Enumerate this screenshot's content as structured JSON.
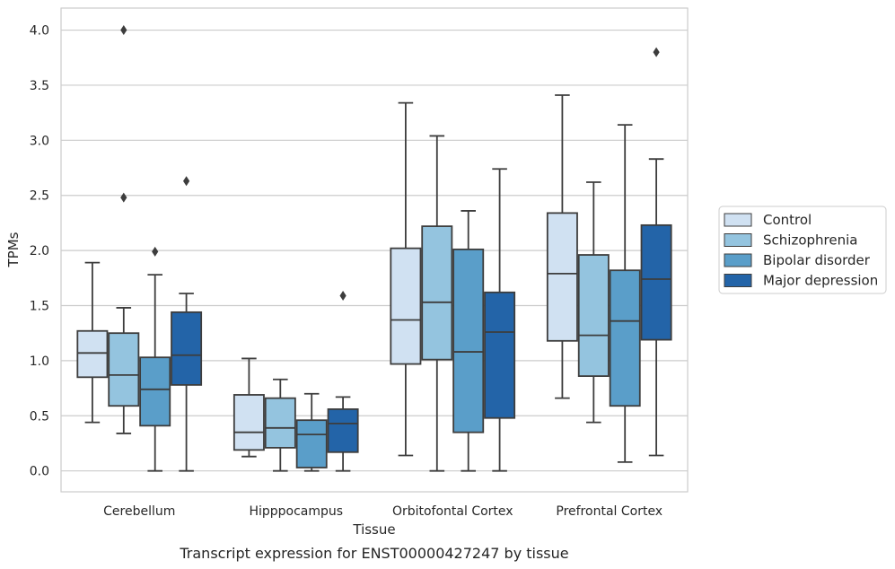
{
  "chart_data": {
    "type": "box",
    "xlabel": "Tissue",
    "ylabel": "TPMs",
    "caption": "Transcript expression for ENST00000427247 by tissue",
    "ylim": [
      -0.19,
      4.2
    ],
    "yticks": [
      "0.0",
      "0.5",
      "1.0",
      "1.5",
      "2.0",
      "2.5",
      "3.0",
      "3.5",
      "4.0"
    ],
    "grid": "horizontal",
    "legend_placement": "right",
    "categories": [
      "Cerebellum",
      "Hipppocampus",
      "Orbitofontal Cortex",
      "Prefrontal Cortex"
    ],
    "series": [
      {
        "name": "Control",
        "color": "#d0e1f2",
        "boxes": [
          {
            "whislo": 0.44,
            "q1": 0.85,
            "med": 1.07,
            "q3": 1.27,
            "whishi": 1.89,
            "fliers": []
          },
          {
            "whislo": 0.13,
            "q1": 0.19,
            "med": 0.35,
            "q3": 0.69,
            "whishi": 1.02,
            "fliers": []
          },
          {
            "whislo": 0.14,
            "q1": 0.97,
            "med": 1.37,
            "q3": 2.02,
            "whishi": 3.34,
            "fliers": []
          },
          {
            "whislo": 0.66,
            "q1": 1.18,
            "med": 1.79,
            "q3": 2.34,
            "whishi": 3.41,
            "fliers": []
          }
        ]
      },
      {
        "name": "Schizophrenia",
        "color": "#94c4df",
        "boxes": [
          {
            "whislo": 0.34,
            "q1": 0.59,
            "med": 0.87,
            "q3": 1.25,
            "whishi": 1.48,
            "fliers": [
              2.48,
              4.0
            ]
          },
          {
            "whislo": 0.0,
            "q1": 0.21,
            "med": 0.39,
            "q3": 0.66,
            "whishi": 0.83,
            "fliers": []
          },
          {
            "whislo": 0.0,
            "q1": 1.01,
            "med": 1.53,
            "q3": 2.22,
            "whishi": 3.04,
            "fliers": []
          },
          {
            "whislo": 0.44,
            "q1": 0.86,
            "med": 1.23,
            "q3": 1.96,
            "whishi": 2.62,
            "fliers": []
          }
        ]
      },
      {
        "name": "Bipolar disorder",
        "color": "#5a9ec9",
        "boxes": [
          {
            "whislo": 0.0,
            "q1": 0.41,
            "med": 0.74,
            "q3": 1.03,
            "whishi": 1.78,
            "fliers": [
              1.99
            ]
          },
          {
            "whislo": 0.0,
            "q1": 0.03,
            "med": 0.33,
            "q3": 0.46,
            "whishi": 0.7,
            "fliers": []
          },
          {
            "whislo": 0.0,
            "q1": 0.35,
            "med": 1.08,
            "q3": 2.01,
            "whishi": 2.36,
            "fliers": []
          },
          {
            "whislo": 0.08,
            "q1": 0.59,
            "med": 1.36,
            "q3": 1.82,
            "whishi": 3.14,
            "fliers": []
          }
        ]
      },
      {
        "name": "Major depression",
        "color": "#2364a8",
        "boxes": [
          {
            "whislo": 0.0,
            "q1": 0.78,
            "med": 1.05,
            "q3": 1.44,
            "whishi": 1.61,
            "fliers": [
              2.63
            ]
          },
          {
            "whislo": 0.0,
            "q1": 0.17,
            "med": 0.43,
            "q3": 0.56,
            "whishi": 0.67,
            "fliers": [
              1.59
            ]
          },
          {
            "whislo": 0.0,
            "q1": 0.48,
            "med": 1.26,
            "q3": 1.62,
            "whishi": 2.74,
            "fliers": []
          },
          {
            "whislo": 0.14,
            "q1": 1.19,
            "med": 1.74,
            "q3": 2.23,
            "whishi": 2.83,
            "fliers": [
              3.8
            ]
          }
        ]
      }
    ]
  }
}
